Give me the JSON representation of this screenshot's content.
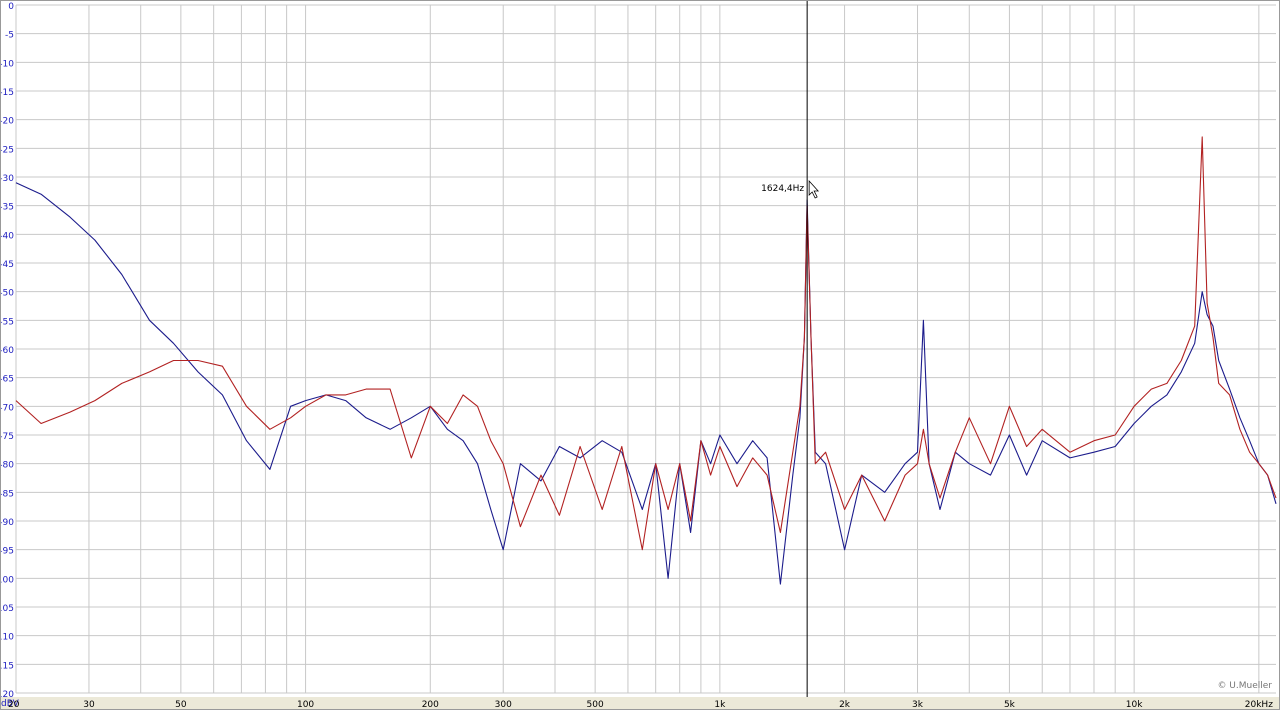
{
  "chart_data": {
    "type": "line",
    "title": "",
    "xlabel": "",
    "ylabel": "",
    "x_scale": "log",
    "xlim": [
      20,
      22000
    ],
    "ylim": [
      -120,
      0
    ],
    "grid": true,
    "y_ticks": [
      {
        "value": 0,
        "label": "0"
      },
      {
        "value": -5,
        "label": "-5"
      },
      {
        "value": -10,
        "label": "-10"
      },
      {
        "value": -15,
        "label": "-15"
      },
      {
        "value": -20,
        "label": "-20"
      },
      {
        "value": -25,
        "label": "-25"
      },
      {
        "value": -30,
        "label": "-30"
      },
      {
        "value": -35,
        "label": "-35"
      },
      {
        "value": -40,
        "label": "-40"
      },
      {
        "value": -45,
        "label": "-45"
      },
      {
        "value": -50,
        "label": "-50"
      },
      {
        "value": -55,
        "label": "-55"
      },
      {
        "value": -60,
        "label": "-60"
      },
      {
        "value": -65,
        "label": "-65"
      },
      {
        "value": -70,
        "label": "-70"
      },
      {
        "value": -75,
        "label": "-75"
      },
      {
        "value": -80,
        "label": "-80"
      },
      {
        "value": -85,
        "label": "-85"
      },
      {
        "value": -90,
        "label": "-90"
      },
      {
        "value": -95,
        "label": "-95"
      },
      {
        "value": -100,
        "label": "-100"
      },
      {
        "value": -105,
        "label": "-105"
      },
      {
        "value": -110,
        "label": "-110"
      },
      {
        "value": -115,
        "label": "-115"
      },
      {
        "value": -120,
        "label": "-120"
      }
    ],
    "y_unit_label": "dBV",
    "x_ticks": [
      {
        "value": 20,
        "label": "20"
      },
      {
        "value": 30,
        "label": "30"
      },
      {
        "value": 50,
        "label": "50"
      },
      {
        "value": 100,
        "label": "100"
      },
      {
        "value": 200,
        "label": "200"
      },
      {
        "value": 300,
        "label": "300"
      },
      {
        "value": 500,
        "label": "500"
      },
      {
        "value": 1000,
        "label": "1k"
      },
      {
        "value": 2000,
        "label": "2k"
      },
      {
        "value": 3000,
        "label": "3k"
      },
      {
        "value": 5000,
        "label": "5k"
      },
      {
        "value": 10000,
        "label": "10k"
      },
      {
        "value": 20000,
        "label": "20kHz"
      }
    ],
    "cursor": {
      "x": 1624.4,
      "label": "1624,4Hz"
    },
    "watermark": "© U.Mueller",
    "series": [
      {
        "color": "#1c1c8c",
        "x": [
          20,
          23,
          27,
          31,
          36,
          42,
          48,
          55,
          63,
          72,
          82,
          92,
          100,
          112,
          125,
          140,
          160,
          180,
          200,
          220,
          240,
          260,
          280,
          300,
          330,
          370,
          410,
          460,
          520,
          580,
          650,
          700,
          750,
          800,
          850,
          900,
          950,
          1000,
          1100,
          1200,
          1300,
          1400,
          1500,
          1560,
          1600,
          1624,
          1660,
          1700,
          1800,
          2000,
          2200,
          2500,
          2800,
          3000,
          3100,
          3200,
          3400,
          3700,
          4000,
          4500,
          5000,
          5500,
          6000,
          7000,
          8000,
          9000,
          10000,
          11000,
          12000,
          13000,
          14000,
          14600,
          15000,
          15500,
          16000,
          17000,
          18000,
          19000,
          20000,
          21000,
          22000
        ],
        "y": [
          -31,
          -33,
          -37,
          -41,
          -47,
          -55,
          -59,
          -64,
          -68,
          -76,
          -81,
          -70,
          -69,
          -68,
          -69,
          -72,
          -74,
          -72,
          -70,
          -74,
          -76,
          -80,
          -88,
          -95,
          -80,
          -83,
          -77,
          -79,
          -76,
          -78,
          -88,
          -80,
          -100,
          -80,
          -92,
          -76,
          -80,
          -75,
          -80,
          -76,
          -79,
          -101,
          -82,
          -72,
          -58,
          -34,
          -58,
          -78,
          -80,
          -95,
          -82,
          -85,
          -80,
          -78,
          -55,
          -80,
          -88,
          -78,
          -80,
          -82,
          -75,
          -82,
          -76,
          -79,
          -78,
          -77,
          -73,
          -70,
          -68,
          -64,
          -59,
          -50,
          -54,
          -56,
          -62,
          -67,
          -72,
          -76,
          -80,
          -82,
          -87
        ]
      },
      {
        "color": "#b22222",
        "x": [
          20,
          23,
          27,
          31,
          36,
          42,
          48,
          55,
          63,
          72,
          82,
          92,
          100,
          112,
          125,
          140,
          160,
          180,
          200,
          220,
          240,
          260,
          280,
          300,
          330,
          370,
          410,
          460,
          520,
          580,
          650,
          700,
          750,
          800,
          850,
          900,
          950,
          1000,
          1100,
          1200,
          1300,
          1400,
          1500,
          1560,
          1600,
          1624,
          1660,
          1700,
          1800,
          2000,
          2200,
          2500,
          2800,
          3000,
          3100,
          3200,
          3400,
          3700,
          4000,
          4500,
          5000,
          5500,
          6000,
          7000,
          8000,
          9000,
          10000,
          11000,
          12000,
          13000,
          14000,
          14600,
          15000,
          15500,
          16000,
          17000,
          18000,
          19000,
          20000,
          21000,
          22000
        ],
        "y": [
          -69,
          -73,
          -71,
          -69,
          -66,
          -64,
          -62,
          -62,
          -63,
          -70,
          -74,
          -72,
          -70,
          -68,
          -68,
          -67,
          -67,
          -79,
          -70,
          -73,
          -68,
          -70,
          -76,
          -80,
          -91,
          -82,
          -89,
          -77,
          -88,
          -77,
          -95,
          -80,
          -88,
          -80,
          -90,
          -76,
          -82,
          -77,
          -84,
          -79,
          -82,
          -92,
          -78,
          -70,
          -58,
          -35,
          -58,
          -80,
          -78,
          -88,
          -82,
          -90,
          -82,
          -80,
          -74,
          -80,
          -86,
          -78,
          -72,
          -80,
          -70,
          -77,
          -74,
          -78,
          -76,
          -75,
          -70,
          -67,
          -66,
          -62,
          -56,
          -23,
          -52,
          -58,
          -66,
          -68,
          -74,
          -78,
          -80,
          -82,
          -86
        ]
      }
    ]
  }
}
